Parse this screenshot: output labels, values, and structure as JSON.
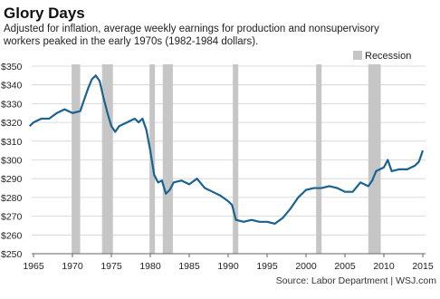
{
  "chart_data": {
    "type": "line",
    "title": "Glory Days",
    "subtitle": "Adjusted for inflation, average weekly earnings for production and nonsupervisory workers peaked in the early 1970s (1982-1984 dollars).",
    "source": "Source: Labor Department | WSJ.com",
    "recession_label": "Recession",
    "recession_color": "#c6c6c6",
    "recessions": [
      [
        1969.9,
        1971.0
      ],
      [
        1973.8,
        1975.2
      ],
      [
        1979.9,
        1980.6
      ],
      [
        1981.6,
        1982.9
      ],
      [
        1990.6,
        1991.3
      ],
      [
        2001.3,
        2002.0
      ],
      [
        2008.0,
        2009.6
      ]
    ],
    "x": [
      1964.5,
      1965,
      1966,
      1967,
      1968,
      1969,
      1970,
      1971,
      1972,
      1972.5,
      1973,
      1973.5,
      1974,
      1974.5,
      1975,
      1975.5,
      1976,
      1977,
      1978,
      1978.5,
      1979,
      1979.5,
      1980,
      1980.5,
      1981,
      1981.5,
      1982,
      1982.5,
      1983,
      1984,
      1985,
      1986,
      1987,
      1988,
      1989,
      1990,
      1990.5,
      1991,
      1992,
      1993,
      1994,
      1995,
      1996,
      1997,
      1998,
      1999,
      2000,
      2001,
      2002,
      2003,
      2004,
      2005,
      2006,
      2007,
      2008,
      2008.5,
      2009,
      2010,
      2010.5,
      2011,
      2012,
      2013,
      2014,
      2014.5,
      2015
    ],
    "series": [
      {
        "name": "Average weekly earnings",
        "color": "#1a6391",
        "values": [
          318,
          320,
          322,
          322,
          325,
          327,
          325,
          326,
          338,
          343,
          345,
          342,
          333,
          325,
          318,
          315,
          318,
          320,
          322,
          320,
          322,
          316,
          305,
          292,
          288,
          289,
          282,
          284,
          288,
          289,
          287,
          290,
          285,
          283,
          281,
          278,
          276,
          268,
          267,
          268,
          267,
          267,
          266,
          269,
          274,
          280,
          284,
          285,
          285,
          286,
          285,
          283,
          283,
          288,
          286,
          289,
          294,
          296,
          300,
          294,
          295,
          295,
          297,
          299,
          305
        ]
      }
    ],
    "xlim": [
      1965,
      2015
    ],
    "xticks": [
      1965,
      1970,
      1975,
      1980,
      1985,
      1990,
      1995,
      2000,
      2005,
      2010,
      2015
    ],
    "ylim": [
      250,
      350
    ],
    "yticks": [
      {
        "value": 250,
        "label": "$250"
      },
      {
        "value": 260,
        "label": "$260"
      },
      {
        "value": 270,
        "label": "$270"
      },
      {
        "value": 280,
        "label": "$280"
      },
      {
        "value": 290,
        "label": "$290"
      },
      {
        "value": 300,
        "label": "$300"
      },
      {
        "value": 310,
        "label": "$310"
      },
      {
        "value": 320,
        "label": "$320"
      },
      {
        "value": 330,
        "label": "$330"
      },
      {
        "value": 340,
        "label": "$340"
      },
      {
        "value": 350,
        "label": "$350"
      }
    ],
    "grid": true
  }
}
